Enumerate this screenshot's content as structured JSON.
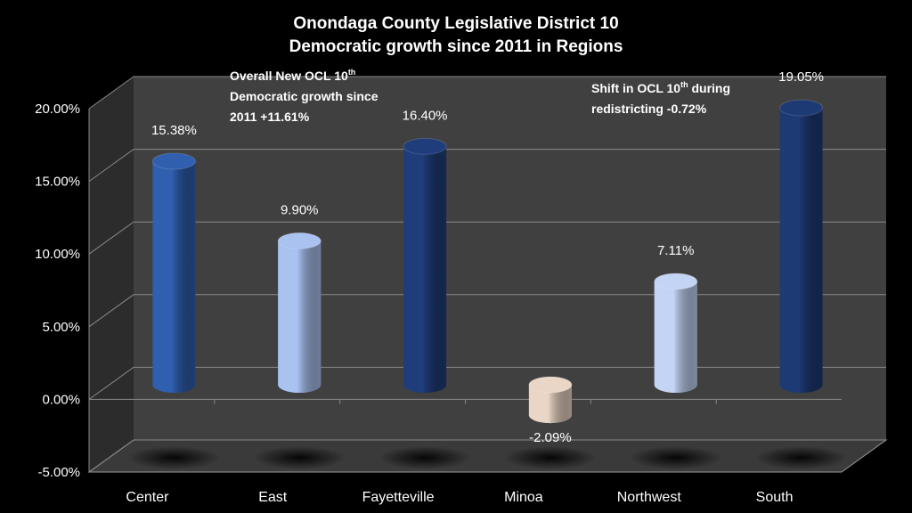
{
  "chart_data": {
    "type": "bar",
    "style": "3d-cylinder",
    "title": [
      "Onondaga County Legislative District 10",
      "Democratic growth since 2011 in Regions"
    ],
    "categories": [
      "Center",
      "East",
      "Fayetteville",
      "Minoa",
      "Northwest",
      "South"
    ],
    "values": [
      15.38,
      9.9,
      16.4,
      -2.09,
      7.11,
      19.05
    ],
    "data_labels": [
      "15.38%",
      "9.90%",
      "16.40%",
      "-2.09%",
      "7.11%",
      "19.05%"
    ],
    "colors": [
      "#2f5fae",
      "#a9c2ef",
      "#1f3d7a",
      "#ead6c6",
      "#c3d4f5",
      "#1e3a74"
    ],
    "ylim": [
      -5,
      20
    ],
    "yticks": [
      20,
      15,
      10,
      5,
      0,
      -5
    ],
    "ytick_labels": [
      "20.00%",
      "15.00%",
      "10.00%",
      "5.00%",
      "0.00%",
      "-5.00%"
    ],
    "xlabel": "",
    "ylabel": "",
    "grid": true,
    "legend": "none",
    "annotations": [
      {
        "lines": [
          "Overall New OCL 10",
          "th",
          "Democratic growth since",
          "2011 +11.61%"
        ]
      },
      {
        "lines": [
          "Shift in OCL 10",
          "th",
          " during",
          "redistricting -0.72%"
        ]
      }
    ]
  }
}
